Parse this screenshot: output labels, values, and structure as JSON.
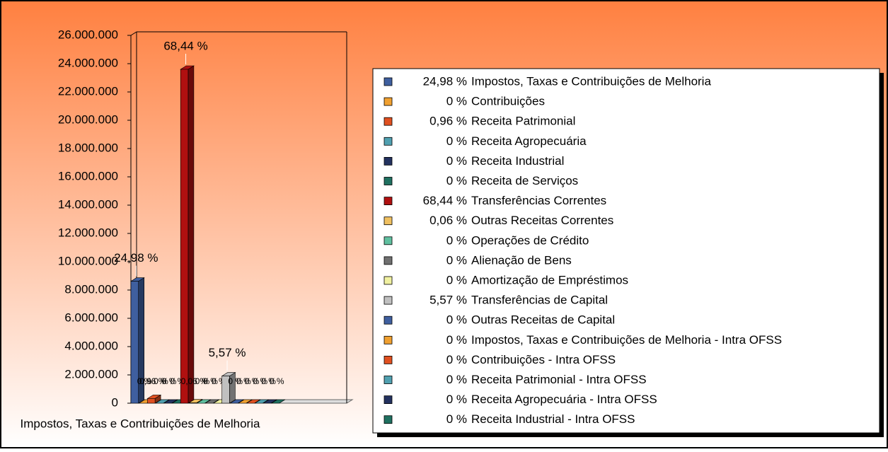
{
  "chart_data": {
    "type": "bar3d",
    "categories": [
      "Impostos, Taxas e Contribuições de Melhoria",
      "Contribuições",
      "Receita Patrimonial",
      "Receita Agropecuária",
      "Receita Industrial",
      "Receita de Serviços",
      "Transferências Correntes",
      "Outras Receitas Correntes",
      "Operações de Crédito",
      "Alienação de Bens",
      "Amortização de Empréstimos",
      "Transferências de Capital",
      "Outras Receitas de Capital",
      "Impostos, Taxas e Contribuições de Melhoria - Intra OFSS",
      "Contribuições - Intra OFSS",
      "Receita Patrimonial - Intra OFSS",
      "Receita Agropecuária - Intra OFSS",
      "Receita Industrial - Intra OFSS"
    ],
    "values": [
      8620000,
      0,
      330000,
      0,
      0,
      0,
      23600000,
      20000,
      0,
      0,
      0,
      1920000,
      0,
      0,
      0,
      0,
      0,
      0
    ],
    "percentages": [
      24.98,
      0,
      0.96,
      0,
      0,
      0,
      68.44,
      0.06,
      0,
      0,
      0,
      5.57,
      0,
      0,
      0,
      0,
      0,
      0
    ],
    "percent_labels": [
      "24,98 %",
      "0 %",
      "0,96 %",
      "0 %",
      "0 %",
      "0 %",
      "68,44 %",
      "0,06 %",
      "0 %",
      "0 %",
      "0 %",
      "5,57 %",
      "0 %",
      "0 %",
      "0 %",
      "0 %",
      "0 %",
      "0 %"
    ],
    "colors": [
      "#3f5f9f",
      "#f0a030",
      "#e05020",
      "#50a0b0",
      "#23325f",
      "#1f7060",
      "#b01010",
      "#f0c060",
      "#60c0a0",
      "#707070",
      "#f0f0a0",
      "#c0c0c0",
      "#3f5f9f",
      "#f0a030",
      "#e05020",
      "#50a0b0",
      "#23325f",
      "#1f7060"
    ],
    "ylim": [
      0,
      26000000
    ],
    "yticks": [
      0,
      {
        "value": 2000000,
        "label": "2.000.000"
      },
      {
        "value": 4000000,
        "label": "4.000.000"
      },
      {
        "value": 6000000,
        "label": "6.000.000"
      },
      {
        "value": 8000000,
        "label": "8.000.000"
      },
      {
        "value": 10000000,
        "label": "10.000.000"
      },
      {
        "value": 12000000,
        "label": "12.000.000"
      },
      {
        "value": 14000000,
        "label": "14.000.000"
      },
      {
        "value": 16000000,
        "label": "16.000.000"
      },
      {
        "value": 18000000,
        "label": "18.000.000"
      },
      {
        "value": 20000000,
        "label": "20.000.000"
      },
      {
        "value": 22000000,
        "label": "22.000.000"
      },
      {
        "value": 24000000,
        "label": "24.000.000"
      },
      {
        "value": 26000000,
        "label": "26.000.000"
      }
    ]
  }
}
